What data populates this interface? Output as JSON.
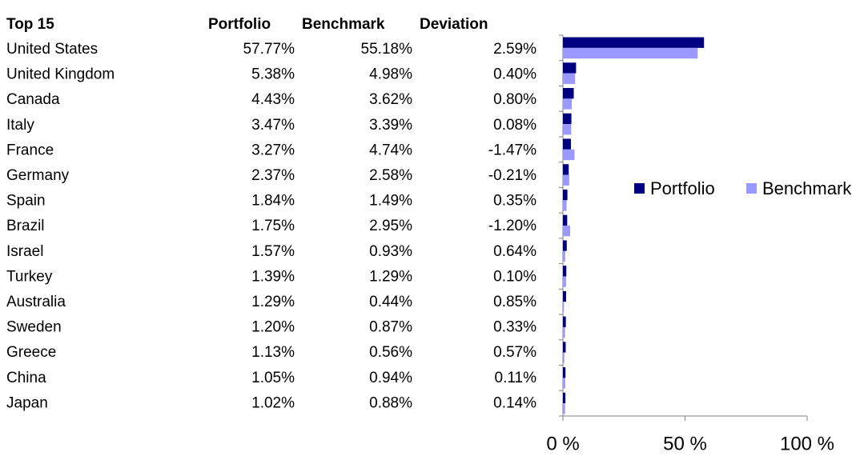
{
  "table": {
    "title": "Top 15",
    "deviation_header": "Deviation",
    "deviation": [
      "2.59%",
      "0.40%",
      "0.80%",
      "0.08%",
      "-1.47%",
      "-0.21%",
      "0.35%",
      "-1.20%",
      "0.64%",
      "0.10%",
      "0.85%",
      "0.33%",
      "0.57%",
      "0.11%",
      "0.14%"
    ]
  },
  "chart_data": {
    "type": "bar",
    "orientation": "horizontal",
    "categories": [
      "United States",
      "United Kingdom",
      "Canada",
      "Italy",
      "France",
      "Germany",
      "Spain",
      "Brazil",
      "Israel",
      "Turkey",
      "Australia",
      "Sweden",
      "Greece",
      "China",
      "Japan"
    ],
    "series": [
      {
        "name": "Portfolio",
        "color": "#000080",
        "values": [
          57.77,
          5.38,
          4.43,
          3.47,
          3.27,
          2.37,
          1.84,
          1.75,
          1.57,
          1.39,
          1.29,
          1.2,
          1.13,
          1.05,
          1.02
        ],
        "value_labels": [
          "57.77%",
          "5.38%",
          "4.43%",
          "3.47%",
          "3.27%",
          "2.37%",
          "1.84%",
          "1.75%",
          "1.57%",
          "1.39%",
          "1.29%",
          "1.20%",
          "1.13%",
          "1.05%",
          "1.02%"
        ]
      },
      {
        "name": "Benchmark",
        "color": "#9999ff",
        "values": [
          55.18,
          4.98,
          3.62,
          3.39,
          4.74,
          2.58,
          1.49,
          2.95,
          0.93,
          1.29,
          0.44,
          0.87,
          0.56,
          0.94,
          0.88
        ],
        "value_labels": [
          "55.18%",
          "4.98%",
          "3.62%",
          "3.39%",
          "4.74%",
          "2.58%",
          "1.49%",
          "2.95%",
          "0.93%",
          "1.29%",
          "0.44%",
          "0.87%",
          "0.56%",
          "0.94%",
          "0.88%"
        ]
      }
    ],
    "xlim": [
      0,
      100
    ],
    "xticks": [
      {
        "value": 0,
        "label": "0 %"
      },
      {
        "value": 50,
        "label": "50 %"
      },
      {
        "value": 100,
        "label": "100 %"
      }
    ],
    "legend": "right"
  }
}
